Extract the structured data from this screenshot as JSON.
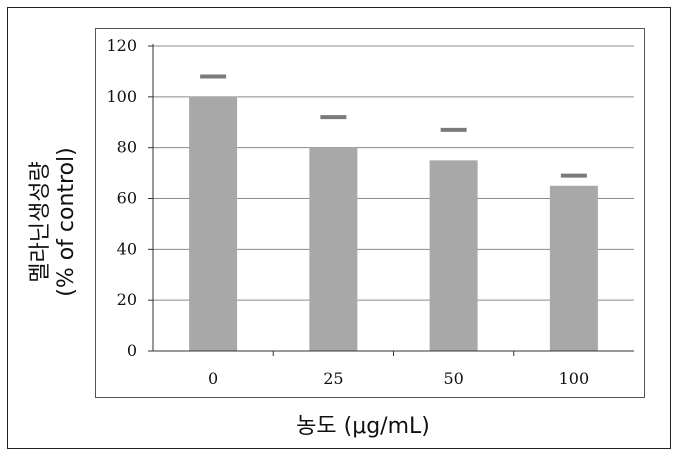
{
  "chart_data": {
    "type": "bar",
    "categories": [
      "0",
      "25",
      "50",
      "100"
    ],
    "values": [
      100,
      80,
      75,
      65
    ],
    "error_upper": [
      108,
      92,
      87,
      69
    ],
    "xlabel": "농도 (μg/mL)",
    "ylabel_line1": "멜라닌생성량",
    "ylabel_line2": "(% of control)",
    "ylim": [
      0,
      120
    ],
    "yticks": [
      "0",
      "20",
      "40",
      "60",
      "80",
      "100",
      "120"
    ],
    "grid": true,
    "bar_color": "#a8a8a8",
    "error_color": "#7a7a7a"
  }
}
